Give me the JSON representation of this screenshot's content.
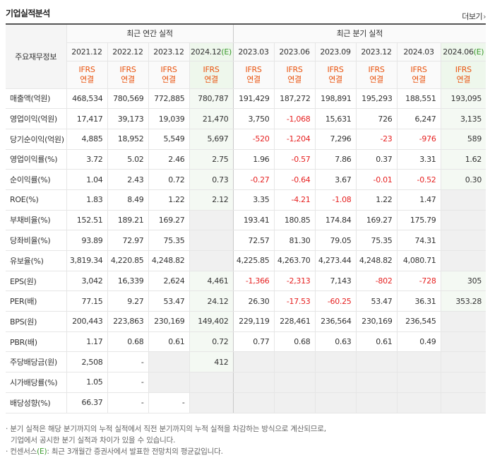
{
  "header": {
    "title": "기업실적분석",
    "more_label": "더보기"
  },
  "table": {
    "corner_label": "주요재무정보",
    "group_annual": "최근 연간 실적",
    "group_quarterly": "최근 분기 실적",
    "periods": [
      {
        "label": "2021.12",
        "est": false
      },
      {
        "label": "2022.12",
        "est": false
      },
      {
        "label": "2023.12",
        "est": false
      },
      {
        "label": "2024.12",
        "est": true
      },
      {
        "label": "2023.03",
        "est": false
      },
      {
        "label": "2023.06",
        "est": false
      },
      {
        "label": "2023.09",
        "est": false
      },
      {
        "label": "2023.12",
        "est": false
      },
      {
        "label": "2024.03",
        "est": false
      },
      {
        "label": "2024.06",
        "est": true
      }
    ],
    "est_mark": "(E)",
    "ifrs_line1": "IFRS",
    "ifrs_line2": "연결",
    "rows": [
      {
        "label": "매출액(억원)",
        "values": [
          "468,534",
          "780,569",
          "772,885",
          "780,787",
          "191,429",
          "187,272",
          "198,891",
          "195,293",
          "188,551",
          "193,095"
        ]
      },
      {
        "label": "영업이익(억원)",
        "values": [
          "17,417",
          "39,173",
          "19,039",
          "21,470",
          "3,750",
          "-1,068",
          "15,631",
          "726",
          "6,247",
          "3,135"
        ]
      },
      {
        "label": "당기순이익(억원)",
        "values": [
          "4,885",
          "18,952",
          "5,549",
          "5,697",
          "-520",
          "-1,204",
          "7,296",
          "-23",
          "-976",
          "589"
        ]
      },
      {
        "label": "영업이익률(%)",
        "values": [
          "3.72",
          "5.02",
          "2.46",
          "2.75",
          "1.96",
          "-0.57",
          "7.86",
          "0.37",
          "3.31",
          "1.62"
        ]
      },
      {
        "label": "순이익률(%)",
        "values": [
          "1.04",
          "2.43",
          "0.72",
          "0.73",
          "-0.27",
          "-0.64",
          "3.67",
          "-0.01",
          "-0.52",
          "0.30"
        ]
      },
      {
        "label": "ROE(%)",
        "values": [
          "1.83",
          "8.49",
          "1.22",
          "2.12",
          "3.35",
          "-4.21",
          "-1.08",
          "1.22",
          "1.47",
          ""
        ]
      },
      {
        "label": "부채비율(%)",
        "values": [
          "152.51",
          "189.21",
          "169.27",
          "",
          "193.41",
          "180.85",
          "174.84",
          "169.27",
          "175.79",
          ""
        ]
      },
      {
        "label": "당좌비율(%)",
        "values": [
          "93.89",
          "72.97",
          "75.35",
          "",
          "72.57",
          "81.30",
          "79.05",
          "75.35",
          "74.31",
          ""
        ]
      },
      {
        "label": "유보율(%)",
        "values": [
          "3,819.34",
          "4,220.85",
          "4,248.82",
          "",
          "4,225.85",
          "4,263.70",
          "4,273.44",
          "4,248.82",
          "4,080.71",
          ""
        ]
      },
      {
        "label": "EPS(원)",
        "values": [
          "3,042",
          "16,339",
          "2,624",
          "4,461",
          "-1,366",
          "-2,313",
          "7,143",
          "-802",
          "-728",
          "305"
        ]
      },
      {
        "label": "PER(배)",
        "values": [
          "77.15",
          "9.27",
          "53.47",
          "24.12",
          "26.30",
          "-17.53",
          "-60.25",
          "53.47",
          "36.31",
          "353.28"
        ]
      },
      {
        "label": "BPS(원)",
        "values": [
          "200,443",
          "223,863",
          "230,169",
          "149,402",
          "229,119",
          "228,461",
          "236,564",
          "230,169",
          "236,545",
          ""
        ]
      },
      {
        "label": "PBR(배)",
        "values": [
          "1.17",
          "0.68",
          "0.61",
          "0.72",
          "0.77",
          "0.68",
          "0.63",
          "0.61",
          "0.49",
          ""
        ]
      },
      {
        "label": "주당배당금(원)",
        "values": [
          "2,508",
          "-",
          "",
          "412",
          "",
          "",
          "",
          "",
          "",
          ""
        ]
      },
      {
        "label": "시가배당률(%)",
        "values": [
          "1.05",
          "-",
          "",
          "",
          "",
          "",
          "",
          "",
          "",
          ""
        ]
      },
      {
        "label": "배당성향(%)",
        "values": [
          "66.37",
          "-",
          "-",
          "",
          "",
          "",
          "",
          "",
          "",
          ""
        ]
      }
    ],
    "empty_cells": [
      [
        5,
        9
      ],
      [
        6,
        3
      ],
      [
        6,
        9
      ],
      [
        7,
        3
      ],
      [
        7,
        9
      ],
      [
        8,
        3
      ],
      [
        8,
        9
      ],
      [
        11,
        9
      ],
      [
        12,
        9
      ],
      [
        13,
        2
      ],
      [
        13,
        4
      ],
      [
        13,
        5
      ],
      [
        13,
        6
      ],
      [
        13,
        7
      ],
      [
        13,
        8
      ],
      [
        13,
        9
      ],
      [
        14,
        2
      ],
      [
        14,
        3
      ],
      [
        14,
        4
      ],
      [
        14,
        5
      ],
      [
        14,
        6
      ],
      [
        14,
        7
      ],
      [
        14,
        8
      ],
      [
        14,
        9
      ],
      [
        15,
        3
      ],
      [
        15,
        4
      ],
      [
        15,
        5
      ],
      [
        15,
        6
      ],
      [
        15,
        7
      ],
      [
        15,
        8
      ],
      [
        15,
        9
      ]
    ]
  },
  "notes": {
    "line1": "· 분기 실적은 해당 분기까지의 누적 실적에서 직전 분기까지의 누적 실적을 차감하는 방식으로 계산되므로,",
    "line2": "기업에서 공시한 분기 실적과 차이가 있을 수 있습니다.",
    "line3_prefix": "· 컨센서스",
    "line3_mark": "(E)",
    "line3_suffix": ": 최근 3개월간 증권사에서 발표한 전망치의 평균값입니다."
  },
  "colors": {
    "accent": "#e9530e",
    "negative": "#e62121",
    "estimate": "#3a9a2c"
  }
}
